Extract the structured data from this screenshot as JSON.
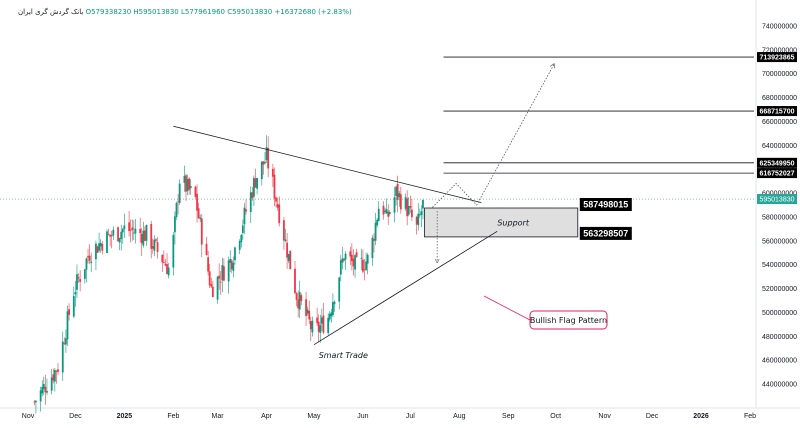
{
  "header": {
    "symbol": "بانک گردش گری ایران",
    "open": "O579338230",
    "high": "H595013830",
    "low": "L577961960",
    "close": "C595013830",
    "change": "+16372680 (+2.83%)"
  },
  "colors": {
    "up": "#089981",
    "down": "#f23645",
    "line": "#131722",
    "pink": "#e91e63",
    "current": "#26a69a",
    "box_fill": "#d9d9d9"
  },
  "chart_data": {
    "type": "candlestick",
    "ylim": [
      420000000,
      750000000
    ],
    "y_ticks": [
      {
        "value": 440000000,
        "label": "440000000"
      },
      {
        "value": 460000000,
        "label": "460000000"
      },
      {
        "value": 480000000,
        "label": "480000000"
      },
      {
        "value": 500000000,
        "label": "500000000"
      },
      {
        "value": 520000000,
        "label": "520000000"
      },
      {
        "value": 540000000,
        "label": "540000000"
      },
      {
        "value": 560000000,
        "label": "560000000"
      },
      {
        "value": 580000000,
        "label": "580000000"
      },
      {
        "value": 600000000,
        "label": "600000000"
      },
      {
        "value": 620000000,
        "label": "620000000"
      },
      {
        "value": 640000000,
        "label": "640000000"
      },
      {
        "value": 660000000,
        "label": "660000000"
      },
      {
        "value": 680000000,
        "label": "680000000"
      },
      {
        "value": 700000000,
        "label": "700000000"
      },
      {
        "value": 720000000,
        "label": "720000000"
      },
      {
        "value": 740000000,
        "label": "740000000"
      }
    ],
    "x_ticks": [
      {
        "date": "2024-11-01",
        "label": "Nov",
        "bold": false
      },
      {
        "date": "2024-12-01",
        "label": "Dec",
        "bold": false
      },
      {
        "date": "2025-01-01",
        "label": "2025",
        "bold": true
      },
      {
        "date": "2025-02-01",
        "label": "Feb",
        "bold": false
      },
      {
        "date": "2025-03-01",
        "label": "Mar",
        "bold": false
      },
      {
        "date": "2025-04-01",
        "label": "Apr",
        "bold": false
      },
      {
        "date": "2025-05-01",
        "label": "May",
        "bold": false
      },
      {
        "date": "2025-06-01",
        "label": "Jun",
        "bold": false
      },
      {
        "date": "2025-07-01",
        "label": "Jul",
        "bold": false
      },
      {
        "date": "2025-08-01",
        "label": "Aug",
        "bold": false
      },
      {
        "date": "2025-09-01",
        "label": "Sep",
        "bold": false
      },
      {
        "date": "2025-10-01",
        "label": "Oct",
        "bold": false
      },
      {
        "date": "2025-11-01",
        "label": "Nov",
        "bold": false
      },
      {
        "date": "2025-12-01",
        "label": "Dec",
        "bold": false
      },
      {
        "date": "2026-01-01",
        "label": "2026",
        "bold": true
      },
      {
        "date": "2026-02-01",
        "label": "Feb",
        "bold": false
      }
    ],
    "price_path": [
      [
        "2024-11-05",
        425000000
      ],
      [
        "2024-11-20",
        455000000
      ],
      [
        "2024-11-30",
        518000000
      ],
      [
        "2024-12-10",
        550000000
      ],
      [
        "2024-12-20",
        562000000
      ],
      [
        "2025-01-01",
        570000000
      ],
      [
        "2025-01-15",
        565000000
      ],
      [
        "2025-01-30",
        535000000
      ],
      [
        "2025-02-05",
        612000000
      ],
      [
        "2025-02-15",
        595000000
      ],
      [
        "2025-02-25",
        520000000
      ],
      [
        "2025-03-10",
        545000000
      ],
      [
        "2025-03-25",
        612000000
      ],
      [
        "2025-04-01",
        630000000
      ],
      [
        "2025-04-08",
        590000000
      ],
      [
        "2025-04-20",
        515000000
      ],
      [
        "2025-05-01",
        482000000
      ],
      [
        "2025-05-10",
        496000000
      ],
      [
        "2025-05-20",
        548000000
      ],
      [
        "2025-05-28",
        538000000
      ],
      [
        "2025-06-05",
        545000000
      ],
      [
        "2025-06-12",
        596000000
      ],
      [
        "2025-06-16",
        578000000
      ],
      [
        "2025-06-22",
        600000000
      ],
      [
        "2025-06-28",
        590000000
      ],
      [
        "2025-07-05",
        570000000
      ],
      [
        "2025-07-10",
        595013830
      ]
    ],
    "current_price": {
      "value": 595013830,
      "label": "595013830"
    },
    "levels": [
      {
        "value": 713923865,
        "label": "713923865"
      },
      {
        "value": 668715700,
        "label": "668715700"
      },
      {
        "value": 625349950,
        "label": "625349950"
      },
      {
        "value": 616752027,
        "label": "616752027"
      }
    ],
    "support_box": {
      "from": "2025-07-10",
      "to": "2025-10-15",
      "top": 587498015,
      "bottom": 563298507,
      "top_label": "587498015",
      "bottom_label": "563298507",
      "label": "Support"
    },
    "triangle": {
      "upper": [
        [
          "2025-02-01",
          656000000
        ],
        [
          "2025-08-15",
          592000000
        ]
      ],
      "lower": [
        [
          "2025-05-01",
          473000000
        ],
        [
          "2025-08-25",
          568000000
        ]
      ]
    },
    "projection": [
      [
        "2025-07-15",
        588000000
      ],
      [
        "2025-07-30",
        608000000
      ],
      [
        "2025-08-12",
        590000000
      ],
      [
        "2025-09-30",
        708000000
      ]
    ],
    "drop_arrow": [
      [
        "2025-07-18",
        585000000
      ],
      [
        "2025-07-18",
        542000000
      ]
    ],
    "annotations": {
      "smart_trade": "Smart Trade",
      "pattern": "Bullish Flag Pattern"
    }
  }
}
